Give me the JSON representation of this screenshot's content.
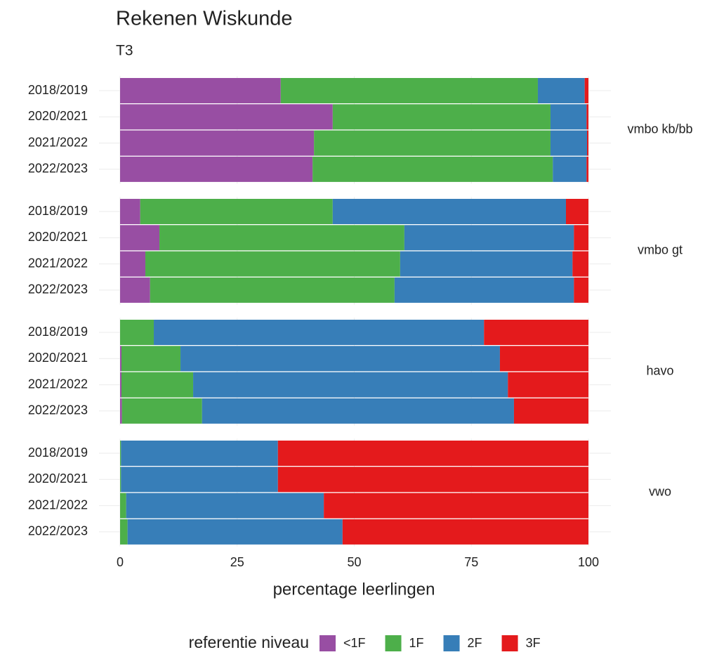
{
  "chart_data": {
    "type": "bar",
    "title": "Rekenen Wiskunde",
    "subtitle": "T3",
    "xlabel": "percentage leerlingen",
    "legend_title": "referentie niveau",
    "xlim": [
      0,
      100
    ],
    "xticks": [
      0,
      25,
      50,
      75,
      100
    ],
    "grid": true,
    "legend": "bottom",
    "panels": [
      "vmbo kb/bb",
      "vmbo gt",
      "havo",
      "vwo"
    ],
    "categories": [
      [
        "2018/2019",
        "2020/2021",
        "2021/2022",
        "2022/2023"
      ],
      [
        "2018/2019",
        "2020/2021",
        "2021/2022",
        "2022/2023"
      ],
      [
        "2018/2019",
        "2020/2021",
        "2021/2022",
        "2022/2023"
      ],
      [
        "2018/2019",
        "2020/2021",
        "2021/2022",
        "2022/2023"
      ]
    ],
    "series": [
      {
        "name": "<1F",
        "color": "#984ea3",
        "values": [
          [
            34.3,
            45.4,
            41.4,
            41.1
          ],
          [
            4.3,
            8.4,
            5.4,
            6.4
          ],
          [
            0,
            0.3,
            0.3,
            0.4
          ],
          [
            0,
            0,
            0,
            0
          ]
        ]
      },
      {
        "name": "1F",
        "color": "#4daf4a",
        "values": [
          [
            54.9,
            46.5,
            50.5,
            51.3
          ],
          [
            41.1,
            52.3,
            54.4,
            52.2
          ],
          [
            7.2,
            12.6,
            15.3,
            17.1
          ],
          [
            0.2,
            0.2,
            1.3,
            1.6
          ]
        ]
      },
      {
        "name": "2F",
        "color": "#377eb8",
        "values": [
          [
            10.0,
            7.7,
            7.8,
            7.2
          ],
          [
            49.8,
            36.2,
            36.8,
            38.3
          ],
          [
            70.5,
            68.2,
            67.2,
            66.6
          ],
          [
            33.5,
            33.5,
            42.2,
            45.9
          ]
        ]
      },
      {
        "name": "3F",
        "color": "#e41a1c",
        "values": [
          [
            0.8,
            0.4,
            0.3,
            0.4
          ],
          [
            4.8,
            3.1,
            3.4,
            3.1
          ],
          [
            22.3,
            18.9,
            17.2,
            15.9
          ],
          [
            66.3,
            66.3,
            56.5,
            52.5
          ]
        ]
      }
    ]
  }
}
